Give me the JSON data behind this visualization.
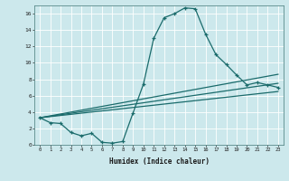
{
  "title": "",
  "xlabel": "Humidex (Indice chaleur)",
  "ylabel": "",
  "background_color": "#cce8ec",
  "line_color": "#1a6b6b",
  "grid_color": "#b8d8dc",
  "xlim": [
    -0.5,
    23.5
  ],
  "ylim": [
    0,
    17
  ],
  "xtick_labels": [
    "0",
    "1",
    "2",
    "3",
    "4",
    "5",
    "6",
    "7",
    "8",
    "9",
    "10",
    "11",
    "12",
    "13",
    "14",
    "15",
    "16",
    "17",
    "18",
    "19",
    "20",
    "21",
    "22",
    "23"
  ],
  "ytick_values": [
    0,
    2,
    4,
    6,
    8,
    10,
    12,
    14,
    16
  ],
  "curve1_x": [
    0,
    1,
    2,
    3,
    4,
    5,
    6,
    7,
    8,
    9,
    10,
    11,
    12,
    13,
    14,
    15,
    16,
    17,
    18,
    19,
    20,
    21,
    22,
    23
  ],
  "curve1_y": [
    3.3,
    2.7,
    2.6,
    1.5,
    1.1,
    1.4,
    0.3,
    0.2,
    0.4,
    3.9,
    7.4,
    13.0,
    15.5,
    16.0,
    16.7,
    16.6,
    13.5,
    11.0,
    9.8,
    8.5,
    7.3,
    7.6,
    7.3,
    7.0
  ],
  "line1_x": [
    0,
    23
  ],
  "line1_y": [
    3.3,
    8.6
  ],
  "line2_x": [
    0,
    23
  ],
  "line2_y": [
    3.3,
    7.5
  ],
  "line3_x": [
    0,
    23
  ],
  "line3_y": [
    3.3,
    6.5
  ]
}
